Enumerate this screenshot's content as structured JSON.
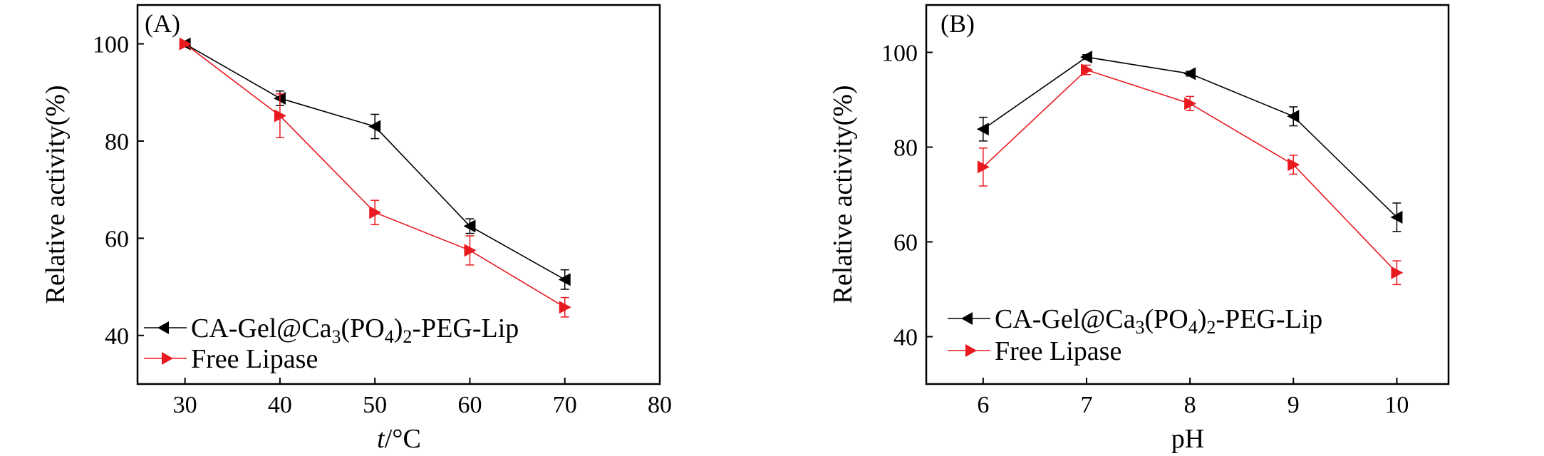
{
  "chart_data": [
    {
      "type": "line",
      "panel_label": "(A)",
      "xlabel_italic": "t",
      "xlabel_rest": "/°C",
      "ylabel": "Relative activity(%)",
      "xlim": [
        25,
        80
      ],
      "ylim": [
        30,
        108
      ],
      "xticks": [
        30,
        40,
        50,
        60,
        70,
        80
      ],
      "yticks": [
        40,
        60,
        80,
        100
      ],
      "legend_position": "bottom-left",
      "series": [
        {
          "name": "CA-Gel@Ca3(PO4)2-PEG-Lip",
          "color": "#000000",
          "marker": "triangle-left",
          "x": [
            30,
            40,
            50,
            60,
            70
          ],
          "y": [
            100,
            88.8,
            83.0,
            62.5,
            51.5
          ],
          "err": [
            0,
            1.5,
            2.5,
            1.5,
            2.0
          ]
        },
        {
          "name": "Free Lipase",
          "color": "#e8191f",
          "marker": "triangle-right",
          "x": [
            30,
            40,
            50,
            60,
            70
          ],
          "y": [
            100,
            85.2,
            65.3,
            57.5,
            45.8
          ],
          "err": [
            0,
            4.5,
            2.5,
            3.0,
            2.0
          ]
        }
      ]
    },
    {
      "type": "line",
      "panel_label": "(B)",
      "xlabel_italic": "",
      "xlabel_rest": "pH",
      "ylabel": "Relative activity(%)",
      "xlim": [
        5.45,
        10.5
      ],
      "ylim": [
        30,
        110
      ],
      "xticks": [
        6,
        7,
        8,
        9,
        10
      ],
      "yticks": [
        40,
        60,
        80,
        100
      ],
      "legend_position": "bottom-left",
      "series": [
        {
          "name": "CA-Gel@Ca3(PO4)2-PEG-Lip",
          "color": "#000000",
          "marker": "triangle-left",
          "x": [
            6,
            7,
            8,
            9,
            10
          ],
          "y": [
            83.8,
            99.0,
            95.5,
            86.5,
            65.2
          ],
          "err": [
            2.5,
            0.5,
            0.5,
            2.0,
            3.0
          ]
        },
        {
          "name": "Free Lipase",
          "color": "#e8191f",
          "marker": "triangle-right",
          "x": [
            6,
            7,
            8,
            9,
            10
          ],
          "y": [
            75.8,
            96.3,
            89.2,
            76.3,
            53.5
          ],
          "err": [
            4.0,
            1.0,
            1.5,
            2.0,
            2.5
          ]
        }
      ]
    }
  ]
}
